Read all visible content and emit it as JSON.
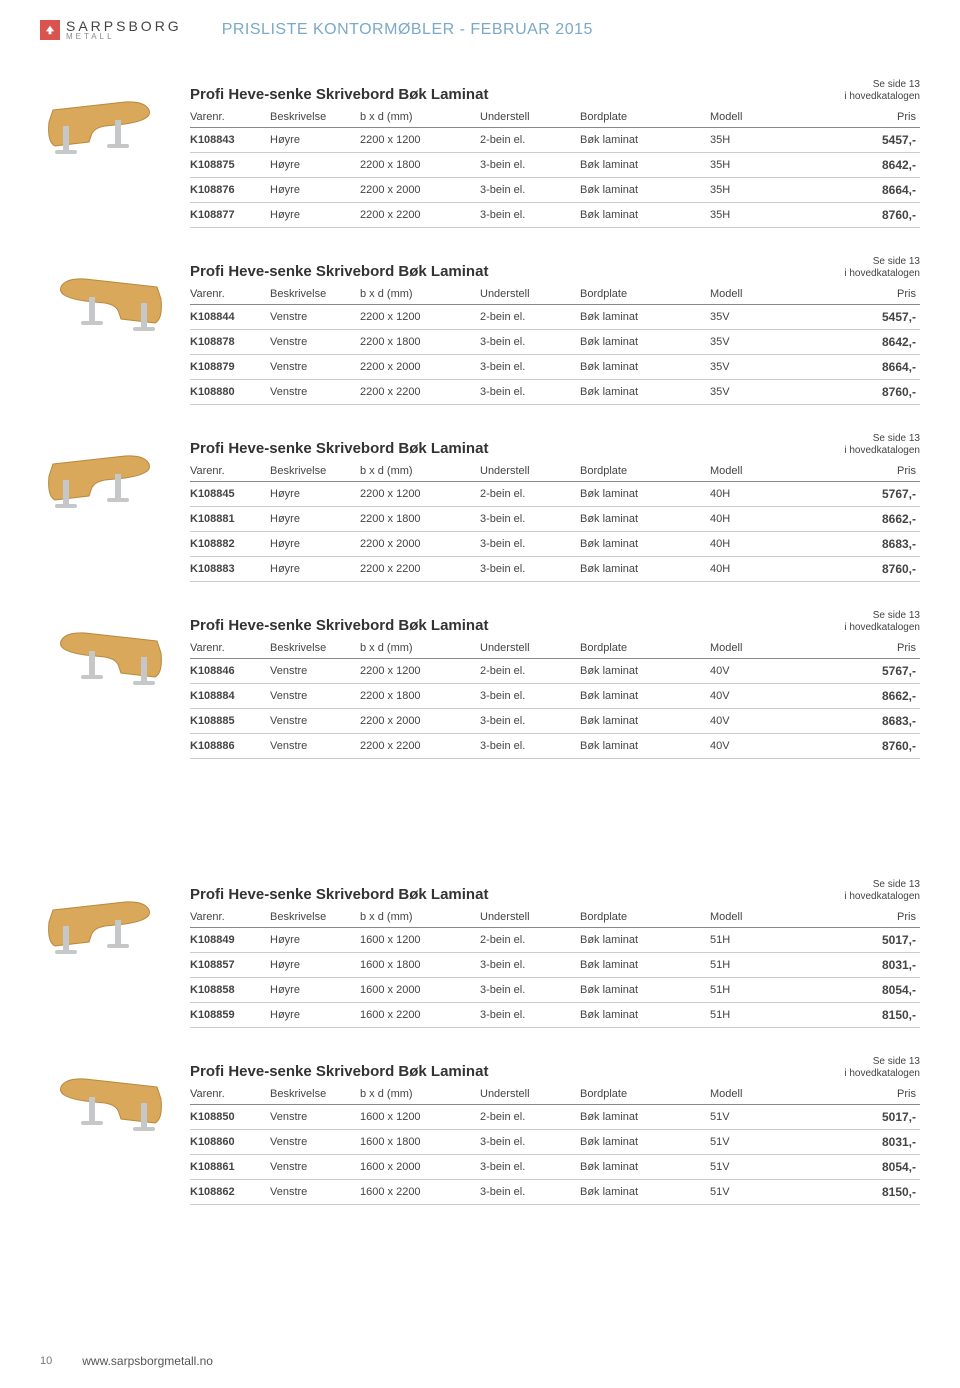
{
  "header": {
    "brand_main": "SARPSBORG",
    "brand_sub": "METALL",
    "page_title": "PRISLISTE KONTORMØBLER - FEBRUAR 2015"
  },
  "see_page": {
    "line1": "Se side 13",
    "line2": "i hovedkatalogen"
  },
  "columns": {
    "varenr": "Varenr.",
    "beskrivelse": "Beskrivelse",
    "dim": "b x d (mm)",
    "understell": "Understell",
    "bordplate": "Bordplate",
    "modell": "Modell",
    "pris": "Pris"
  },
  "product_title": "Profi Heve-senke Skrivebord Bøk Laminat",
  "sections": [
    {
      "rows": [
        {
          "varenr": "K108843",
          "besk": "Høyre",
          "dim": "2200 x 1200",
          "under": "2-bein el.",
          "bord": "Bøk laminat",
          "model": "35H",
          "pris": "5457,-"
        },
        {
          "varenr": "K108875",
          "besk": "Høyre",
          "dim": "2200 x 1800",
          "under": "3-bein el.",
          "bord": "Bøk laminat",
          "model": "35H",
          "pris": "8642,-"
        },
        {
          "varenr": "K108876",
          "besk": "Høyre",
          "dim": "2200 x 2000",
          "under": "3-bein el.",
          "bord": "Bøk laminat",
          "model": "35H",
          "pris": "8664,-"
        },
        {
          "varenr": "K108877",
          "besk": "Høyre",
          "dim": "2200 x 2200",
          "under": "3-bein el.",
          "bord": "Bøk laminat",
          "model": "35H",
          "pris": "8760,-"
        }
      ]
    },
    {
      "rows": [
        {
          "varenr": "K108844",
          "besk": "Venstre",
          "dim": "2200 x 1200",
          "under": "2-bein el.",
          "bord": "Bøk laminat",
          "model": "35V",
          "pris": "5457,-"
        },
        {
          "varenr": "K108878",
          "besk": "Venstre",
          "dim": "2200 x 1800",
          "under": "3-bein el.",
          "bord": "Bøk laminat",
          "model": "35V",
          "pris": "8642,-"
        },
        {
          "varenr": "K108879",
          "besk": "Venstre",
          "dim": "2200 x 2000",
          "under": "3-bein el.",
          "bord": "Bøk laminat",
          "model": "35V",
          "pris": "8664,-"
        },
        {
          "varenr": "K108880",
          "besk": "Venstre",
          "dim": "2200 x 2200",
          "under": "3-bein el.",
          "bord": "Bøk laminat",
          "model": "35V",
          "pris": "8760,-"
        }
      ]
    },
    {
      "rows": [
        {
          "varenr": "K108845",
          "besk": "Høyre",
          "dim": "2200 x 1200",
          "under": "2-bein el.",
          "bord": "Bøk laminat",
          "model": "40H",
          "pris": "5767,-"
        },
        {
          "varenr": "K108881",
          "besk": "Høyre",
          "dim": "2200 x 1800",
          "under": "3-bein el.",
          "bord": "Bøk laminat",
          "model": "40H",
          "pris": "8662,-"
        },
        {
          "varenr": "K108882",
          "besk": "Høyre",
          "dim": "2200 x 2000",
          "under": "3-bein el.",
          "bord": "Bøk laminat",
          "model": "40H",
          "pris": "8683,-"
        },
        {
          "varenr": "K108883",
          "besk": "Høyre",
          "dim": "2200 x 2200",
          "under": "3-bein el.",
          "bord": "Bøk laminat",
          "model": "40H",
          "pris": "8760,-"
        }
      ]
    },
    {
      "rows": [
        {
          "varenr": "K108846",
          "besk": "Venstre",
          "dim": "2200 x 1200",
          "under": "2-bein el.",
          "bord": "Bøk laminat",
          "model": "40V",
          "pris": "5767,-"
        },
        {
          "varenr": "K108884",
          "besk": "Venstre",
          "dim": "2200 x 1800",
          "under": "3-bein el.",
          "bord": "Bøk laminat",
          "model": "40V",
          "pris": "8662,-"
        },
        {
          "varenr": "K108885",
          "besk": "Venstre",
          "dim": "2200 x 2000",
          "under": "3-bein el.",
          "bord": "Bøk laminat",
          "model": "40V",
          "pris": "8683,-"
        },
        {
          "varenr": "K108886",
          "besk": "Venstre",
          "dim": "2200 x 2200",
          "under": "3-bein el.",
          "bord": "Bøk laminat",
          "model": "40V",
          "pris": "8760,-"
        }
      ]
    },
    {
      "rows": [
        {
          "varenr": "K108849",
          "besk": "Høyre",
          "dim": "1600 x 1200",
          "under": "2-bein el.",
          "bord": "Bøk laminat",
          "model": "51H",
          "pris": "5017,-"
        },
        {
          "varenr": "K108857",
          "besk": "Høyre",
          "dim": "1600 x 1800",
          "under": "3-bein el.",
          "bord": "Bøk laminat",
          "model": "51H",
          "pris": "8031,-"
        },
        {
          "varenr": "K108858",
          "besk": "Høyre",
          "dim": "1600 x 2000",
          "under": "3-bein el.",
          "bord": "Bøk laminat",
          "model": "51H",
          "pris": "8054,-"
        },
        {
          "varenr": "K108859",
          "besk": "Høyre",
          "dim": "1600 x 2200",
          "under": "3-bein el.",
          "bord": "Bøk laminat",
          "model": "51H",
          "pris": "8150,-"
        }
      ]
    },
    {
      "rows": [
        {
          "varenr": "K108850",
          "besk": "Venstre",
          "dim": "1600 x 1200",
          "under": "2-bein el.",
          "bord": "Bøk laminat",
          "model": "51V",
          "pris": "5017,-"
        },
        {
          "varenr": "K108860",
          "besk": "Venstre",
          "dim": "1600 x 1800",
          "under": "3-bein el.",
          "bord": "Bøk laminat",
          "model": "51V",
          "pris": "8031,-"
        },
        {
          "varenr": "K108861",
          "besk": "Venstre",
          "dim": "1600 x 2000",
          "under": "3-bein el.",
          "bord": "Bøk laminat",
          "model": "51V",
          "pris": "8054,-"
        },
        {
          "varenr": "K108862",
          "besk": "Venstre",
          "dim": "1600 x 2200",
          "under": "3-bein el.",
          "bord": "Bøk laminat",
          "model": "51V",
          "pris": "8150,-"
        }
      ]
    }
  ],
  "footer": {
    "page_num": "10",
    "url": "www.sarpsborgmetall.no"
  },
  "colors": {
    "accent": "#7aa9c9",
    "wood": "#d9a85a",
    "wood_dark": "#b8883e",
    "metal": "#c5c7c9"
  }
}
